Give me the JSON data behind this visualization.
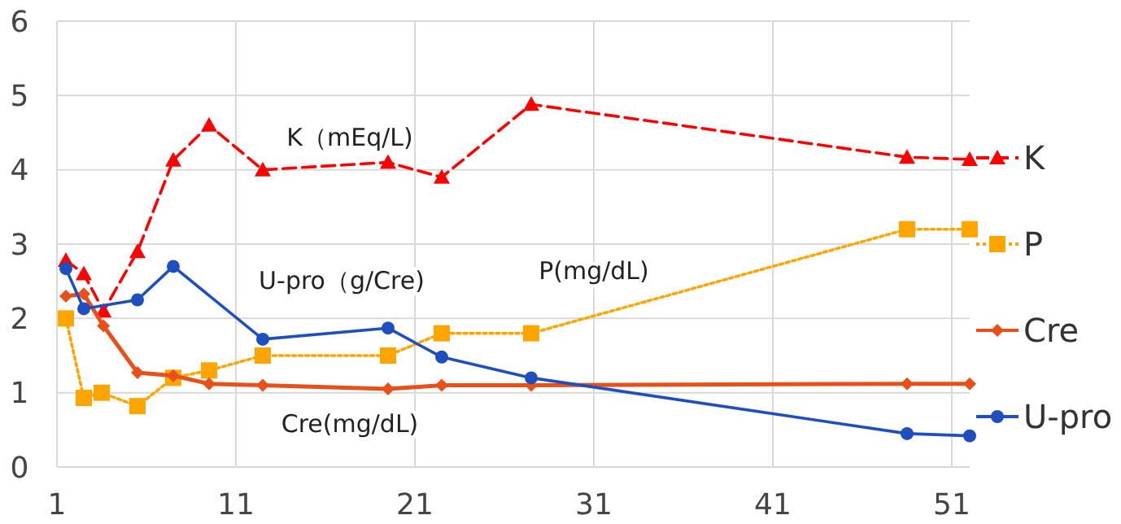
{
  "chart_data": {
    "type": "line",
    "xlim": [
      1,
      52
    ],
    "xticks": [
      1,
      11,
      21,
      31,
      41,
      51
    ],
    "ylim": [
      0,
      6
    ],
    "yticks": [
      0,
      1,
      2,
      3,
      4,
      5,
      6
    ],
    "grid": true,
    "legend": "right",
    "series": [
      {
        "name": "K",
        "color": "#ff0000",
        "marker": "triangle",
        "line_style": "dashed",
        "x": [
          1.5,
          2.5,
          3.6,
          5.5,
          7.5,
          9.5,
          12.5,
          19.5,
          22.5,
          27.5,
          48.5,
          52
        ],
        "values": [
          2.78,
          2.6,
          2.1,
          2.9,
          4.13,
          4.6,
          4.0,
          4.1,
          3.9,
          4.88,
          4.17,
          4.14
        ]
      },
      {
        "name": "P",
        "color": "#ffa500",
        "marker": "square",
        "line_style": "dotted",
        "x": [
          1.5,
          2.5,
          3.5,
          5.5,
          7.5,
          9.5,
          12.5,
          19.5,
          22.5,
          27.5,
          48.5,
          52
        ],
        "values": [
          2.0,
          0.93,
          1.0,
          0.82,
          1.2,
          1.3,
          1.5,
          1.5,
          1.8,
          1.8,
          3.2,
          3.2
        ]
      },
      {
        "name": "Cre",
        "color": "#e8501a",
        "marker": "diamond",
        "line_style": "solid",
        "x": [
          1.5,
          2.5,
          3.6,
          5.5,
          7.5,
          9.5,
          12.5,
          19.5,
          22.5,
          27.5,
          48.5,
          52
        ],
        "values": [
          2.3,
          2.33,
          1.9,
          1.27,
          1.23,
          1.12,
          1.1,
          1.05,
          1.1,
          1.1,
          1.12,
          1.12
        ]
      },
      {
        "name": "U-pro",
        "color": "#1f4fbf",
        "marker": "circle",
        "line_style": "solid",
        "x": [
          1.5,
          2.5,
          5.5,
          7.5,
          12.5,
          19.5,
          22.5,
          27.5,
          48.5,
          52
        ],
        "values": [
          2.67,
          2.13,
          2.25,
          2.7,
          1.72,
          1.87,
          1.48,
          1.2,
          0.45,
          0.42
        ]
      }
    ],
    "annotations": [
      "K（mEq/L)",
      "U-pro（g/Cre)",
      "P(mg/dL)",
      "Cre(mg/dL)"
    ]
  }
}
